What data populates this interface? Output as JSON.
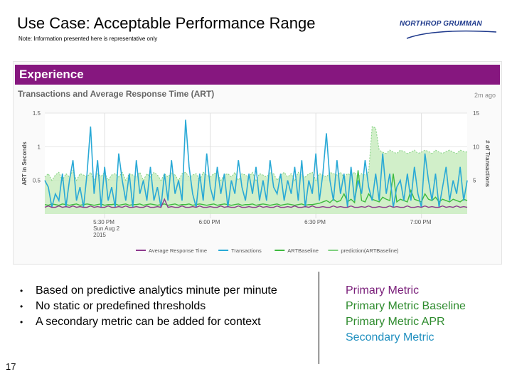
{
  "slide": {
    "title": "Use Case: Acceptable Performance Range",
    "note": "Note: Information presented here is representative only",
    "logo_text": "NORTHROP GRUMMAN",
    "page_number": "17"
  },
  "panel": {
    "header": "Experience",
    "chart_title": "Transactions and Average Response Time (ART)",
    "age": "2m ago"
  },
  "bullets": [
    "Based on predictive analytics minute per minute",
    "No static or predefined thresholds",
    "A secondary metric can be added for context"
  ],
  "metrics": [
    {
      "label": "Primary Metric",
      "color": "#7a1f7a"
    },
    {
      "label": "Primary Metric Baseline",
      "color": "#2e8b2e"
    },
    {
      "label": "Primary Metric APR",
      "color": "#2e8b2e"
    },
    {
      "label": "Secondary Metric",
      "color": "#1f8fbf"
    }
  ],
  "chart_data": {
    "type": "line",
    "ylabel": "ART in Seconds",
    "y2label": "# of Transactions",
    "ylim": [
      0,
      1.5
    ],
    "y2lim": [
      0,
      15
    ],
    "yticks": [
      "0.5",
      "1",
      "1.5"
    ],
    "y2ticks": [
      "5",
      "10",
      "15"
    ],
    "xlim": [
      0,
      120
    ],
    "xticks": [
      {
        "x": 17,
        "lines": [
          "5:30 PM",
          "Sun Aug 2",
          "2015"
        ]
      },
      {
        "x": 47,
        "lines": [
          "6:00 PM"
        ]
      },
      {
        "x": 77,
        "lines": [
          "6:30 PM"
        ]
      },
      {
        "x": 107,
        "lines": [
          "7:00 PM"
        ]
      }
    ],
    "grid": true,
    "legend_position": "bottom",
    "series": [
      {
        "name": "Average Response Time",
        "axis": "left",
        "color": "#8e3a8e",
        "values": [
          0.1,
          0.12,
          0.1,
          0.1,
          0.12,
          0.1,
          0.11,
          0.1,
          0.12,
          0.1,
          0.11,
          0.1,
          0.1,
          0.12,
          0.1,
          0.11,
          0.1,
          0.1,
          0.12,
          0.1,
          0.1,
          0.11,
          0.1,
          0.12,
          0.1,
          0.1,
          0.11,
          0.1,
          0.1,
          0.12,
          0.1,
          0.1,
          0.11,
          0.1,
          0.22,
          0.1,
          0.11,
          0.1,
          0.1,
          0.12,
          0.1,
          0.1,
          0.11,
          0.1,
          0.12,
          0.1,
          0.1,
          0.11,
          0.1,
          0.1,
          0.12,
          0.1,
          0.11,
          0.1,
          0.1,
          0.12,
          0.1,
          0.1,
          0.11,
          0.1,
          0.1,
          0.12,
          0.1,
          0.11,
          0.1,
          0.1,
          0.12,
          0.1,
          0.1,
          0.11,
          0.1,
          0.12,
          0.1,
          0.1,
          0.11,
          0.1,
          0.12,
          0.1,
          0.1,
          0.11,
          0.1,
          0.1,
          0.12,
          0.1,
          0.11,
          0.1,
          0.1,
          0.12,
          0.1,
          0.1,
          0.11,
          0.1,
          0.12,
          0.1,
          0.1,
          0.11,
          0.1,
          0.1,
          0.12,
          0.1,
          0.11,
          0.1,
          0.1,
          0.12,
          0.1,
          0.1,
          0.11,
          0.1,
          0.12,
          0.1,
          0.11,
          0.1,
          0.1,
          0.12,
          0.1,
          0.11,
          0.1,
          0.12,
          0.1,
          0.11,
          0.1
        ]
      },
      {
        "name": "Transactions",
        "axis": "right",
        "color": "#29a9d6",
        "values": [
          5,
          4,
          1,
          3,
          2,
          6,
          1,
          5,
          8,
          2,
          4,
          1,
          6,
          13,
          3,
          8,
          1,
          7,
          2,
          4,
          1,
          9,
          5,
          2,
          6,
          1,
          8,
          3,
          5,
          2,
          7,
          2,
          4,
          1,
          6,
          2,
          8,
          3,
          5,
          2,
          14,
          7,
          3,
          1,
          6,
          2,
          9,
          4,
          2,
          7,
          3,
          6,
          1,
          5,
          3,
          8,
          4,
          2,
          6,
          3,
          7,
          2,
          5,
          2,
          8,
          4,
          3,
          6,
          2,
          5,
          3,
          7,
          2,
          8,
          1,
          5,
          3,
          9,
          2,
          6,
          12,
          5,
          2,
          8,
          3,
          6,
          1,
          7,
          2,
          5,
          3,
          8,
          4,
          2,
          6,
          2,
          9,
          3,
          6,
          1,
          4,
          5,
          2,
          6,
          2,
          7,
          3,
          1,
          9,
          5,
          2,
          6,
          1,
          4,
          7,
          2,
          5,
          3,
          7,
          2,
          5
        ]
      },
      {
        "name": "ARTBaseline",
        "axis": "left",
        "color": "#3fba3f",
        "values": [
          0.14,
          0.13,
          0.15,
          0.14,
          0.13,
          0.15,
          0.14,
          0.13,
          0.14,
          0.15,
          0.13,
          0.14,
          0.15,
          0.14,
          0.13,
          0.14,
          0.15,
          0.13,
          0.14,
          0.14,
          0.15,
          0.13,
          0.14,
          0.15,
          0.13,
          0.14,
          0.14,
          0.15,
          0.13,
          0.14,
          0.15,
          0.14,
          0.13,
          0.14,
          0.15,
          0.13,
          0.14,
          0.15,
          0.13,
          0.14,
          0.14,
          0.15,
          0.13,
          0.14,
          0.15,
          0.14,
          0.13,
          0.14,
          0.15,
          0.13,
          0.14,
          0.15,
          0.14,
          0.13,
          0.14,
          0.15,
          0.13,
          0.14,
          0.14,
          0.15,
          0.13,
          0.14,
          0.15,
          0.14,
          0.13,
          0.14,
          0.15,
          0.13,
          0.14,
          0.15,
          0.14,
          0.13,
          0.14,
          0.15,
          0.13,
          0.14,
          0.14,
          0.15,
          0.16,
          0.18,
          0.2,
          0.17,
          0.22,
          0.18,
          0.2,
          0.3,
          0.18,
          0.22,
          0.17,
          0.65,
          0.2,
          0.18,
          0.3,
          0.22,
          0.2,
          0.18,
          0.25,
          0.22,
          0.2,
          0.6,
          0.18,
          0.22,
          0.2,
          0.18,
          0.35,
          0.22,
          0.2,
          0.18,
          0.3,
          0.22,
          0.2,
          0.25,
          0.18,
          0.22,
          0.2,
          0.18,
          0.22,
          0.2,
          0.18,
          0.22,
          0.2
        ]
      },
      {
        "name": "prediction(ARTBaseline)",
        "axis": "left",
        "color": "#7fd07f",
        "fill": "#c9ecc0",
        "values": [
          0.55,
          0.6,
          0.5,
          0.58,
          0.62,
          0.5,
          0.6,
          0.55,
          0.65,
          0.5,
          0.6,
          0.58,
          0.55,
          0.62,
          0.5,
          0.6,
          0.56,
          0.62,
          0.5,
          0.58,
          0.6,
          0.55,
          0.62,
          0.5,
          0.6,
          0.58,
          0.55,
          0.62,
          0.5,
          0.6,
          0.55,
          0.62,
          0.58,
          0.5,
          0.6,
          0.55,
          0.62,
          0.58,
          0.5,
          0.6,
          0.62,
          0.55,
          0.58,
          0.6,
          0.5,
          0.62,
          0.58,
          0.55,
          0.6,
          0.62,
          0.5,
          0.58,
          0.6,
          0.55,
          0.62,
          0.5,
          0.6,
          0.58,
          0.55,
          0.62,
          0.5,
          0.6,
          0.58,
          0.55,
          0.62,
          0.6,
          0.5,
          0.58,
          0.62,
          0.55,
          0.6,
          0.5,
          0.62,
          0.58,
          0.55,
          0.6,
          0.62,
          0.5,
          0.6,
          0.58,
          0.55,
          0.62,
          0.6,
          0.58,
          0.62,
          0.55,
          0.6,
          0.58,
          0.62,
          0.55,
          0.6,
          0.58,
          0.62,
          1.3,
          1.28,
          0.95,
          0.92,
          0.9,
          0.95,
          0.92,
          0.9,
          0.95,
          0.93,
          0.9,
          0.92,
          0.95,
          0.9,
          0.92,
          0.95,
          0.93,
          0.9,
          0.95,
          0.92,
          0.9,
          0.93,
          0.95,
          0.92,
          0.9,
          0.95,
          0.93,
          0.92
        ]
      }
    ]
  }
}
